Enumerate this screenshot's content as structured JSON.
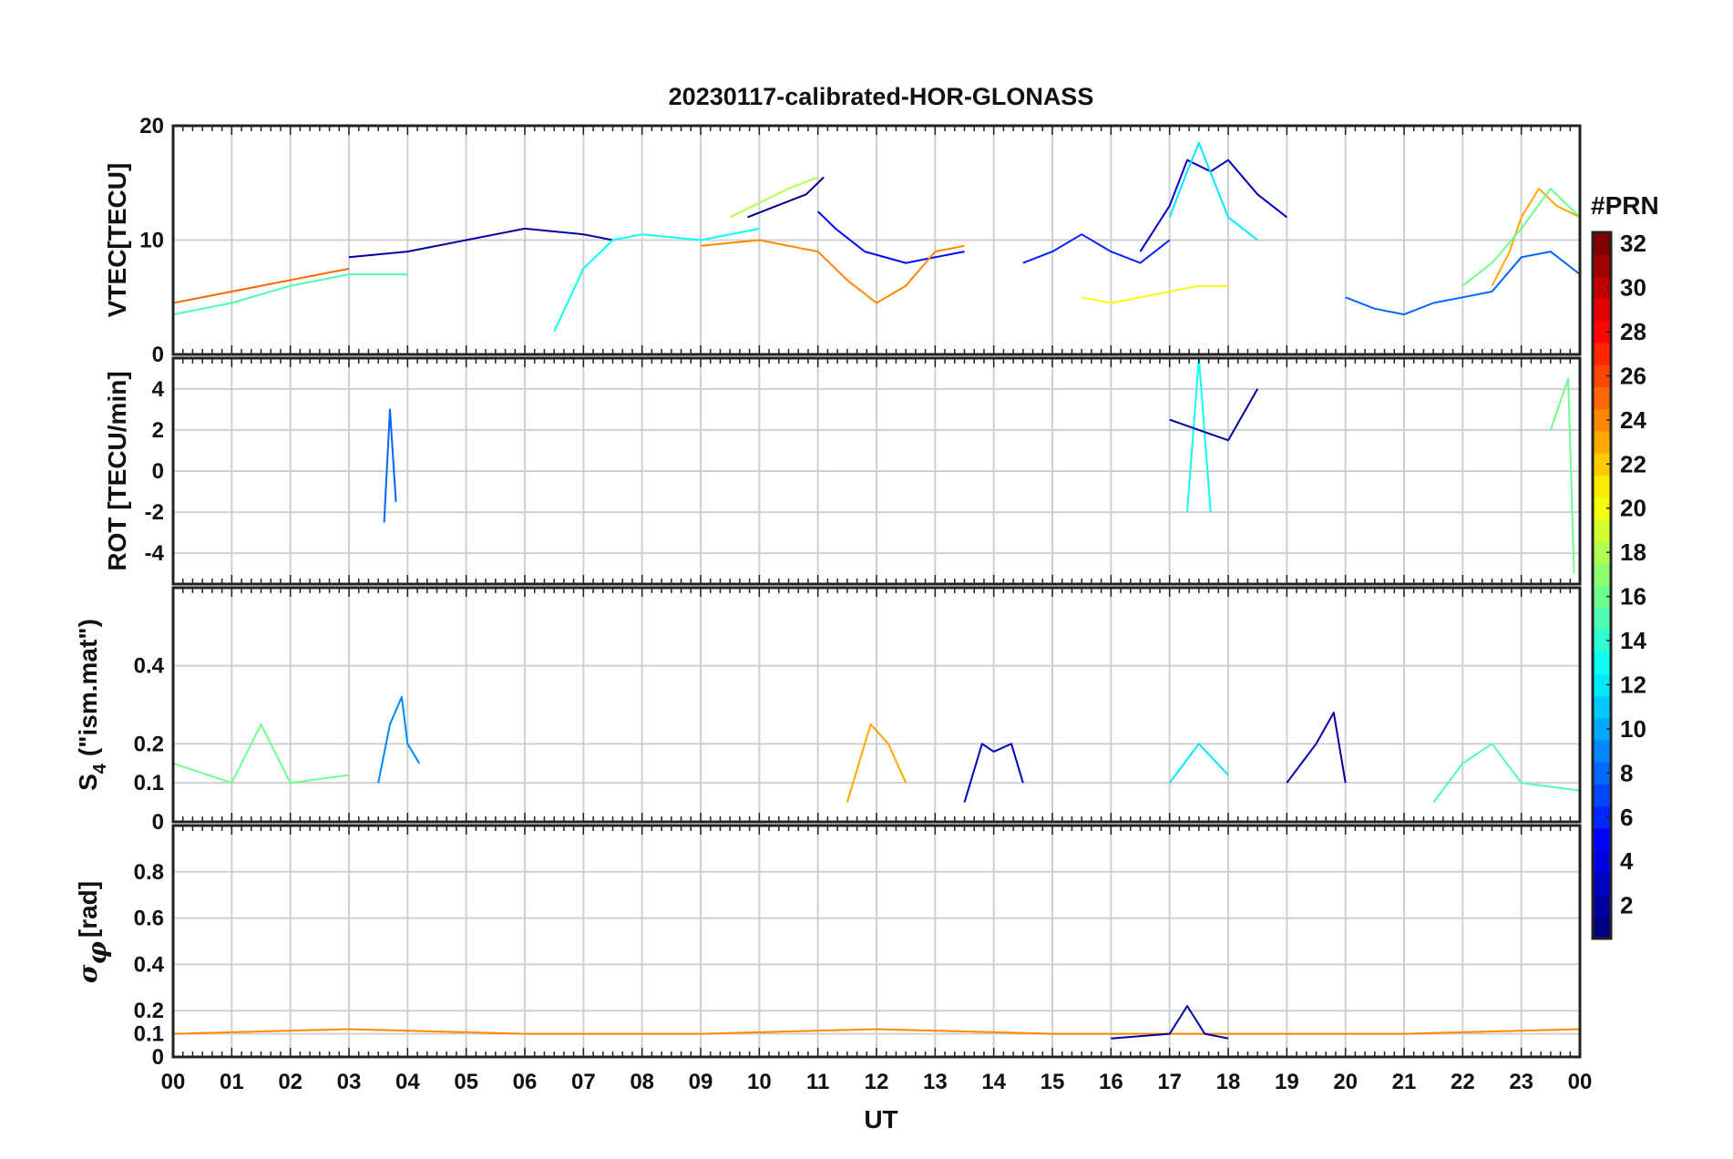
{
  "figure": {
    "title": "20230117-calibrated-HOR-GLONASS"
  },
  "chart_data": [
    {
      "panel": "vtec",
      "type": "line",
      "title": "20230117-calibrated-HOR-GLONASS",
      "ylabel": "VTEC[TECU]",
      "ylim": [
        0,
        20
      ],
      "yticks": [
        "0",
        "10",
        "20"
      ],
      "grid": true,
      "series": [
        {
          "prn": 2,
          "x": [
            3.0,
            4.0,
            5.0,
            5.5,
            6.0,
            7.0,
            7.5
          ],
          "y": [
            8.5,
            9.0,
            10.0,
            10.5,
            11.0,
            10.5,
            10.0
          ]
        },
        {
          "prn": 1,
          "x": [
            9.8,
            10.3,
            10.8,
            11.1
          ],
          "y": [
            12.0,
            13.0,
            14.0,
            15.5
          ]
        },
        {
          "prn": 5,
          "x": [
            11.0,
            11.3,
            11.8,
            12.5,
            13.0,
            13.5
          ],
          "y": [
            12.5,
            11.0,
            9.0,
            8.0,
            8.5,
            9.0
          ]
        },
        {
          "prn": 24,
          "x": [
            9.0,
            10.0,
            11.0,
            11.5,
            12.0,
            12.5,
            13.0,
            13.5
          ],
          "y": [
            9.5,
            10.0,
            9.0,
            6.5,
            4.5,
            6.0,
            9.0,
            9.5
          ]
        },
        {
          "prn": 13,
          "x": [
            6.5,
            7.0,
            7.5,
            8.0,
            9.0,
            10.0
          ],
          "y": [
            2.0,
            7.5,
            10.0,
            10.5,
            10.0,
            11.0
          ]
        },
        {
          "prn": 18,
          "x": [
            9.5,
            10.5,
            11.0
          ],
          "y": [
            12.0,
            14.5,
            15.5
          ]
        },
        {
          "prn": 3,
          "x": [
            16.5,
            17.0,
            17.3,
            17.7,
            18.0,
            18.5,
            19.0
          ],
          "y": [
            9.0,
            13.0,
            17.0,
            16.0,
            17.0,
            14.0,
            12.0
          ]
        },
        {
          "prn": 12,
          "x": [
            17.0,
            17.3,
            17.5,
            18.0,
            18.5
          ],
          "y": [
            12.0,
            16.0,
            18.5,
            12.0,
            10.0
          ]
        },
        {
          "prn": 6,
          "x": [
            14.5,
            15.0,
            15.5,
            16.0,
            16.5,
            17.0
          ],
          "y": [
            8.0,
            9.0,
            10.5,
            9.0,
            8.0,
            10.0
          ]
        },
        {
          "prn": 20,
          "x": [
            15.5,
            16.0,
            16.5,
            17.0,
            17.5,
            18.0
          ],
          "y": [
            5.0,
            4.5,
            5.0,
            5.5,
            6.0,
            6.0
          ]
        },
        {
          "prn": 23,
          "x": [
            22.5,
            22.8,
            23.0,
            23.3,
            23.6,
            24.0
          ],
          "y": [
            6.0,
            9.0,
            12.0,
            14.5,
            13.0,
            12.0
          ]
        },
        {
          "prn": 16,
          "x": [
            22.0,
            22.5,
            23.0,
            23.5,
            24.0
          ],
          "y": [
            6.0,
            8.0,
            11.0,
            14.5,
            12.0
          ]
        },
        {
          "prn": 8,
          "x": [
            20.0,
            20.5,
            21.0,
            21.5,
            22.0,
            22.5,
            23.0,
            23.5,
            24.0
          ],
          "y": [
            5.0,
            4.0,
            3.5,
            4.5,
            5.0,
            5.5,
            8.5,
            9.0,
            7.0
          ]
        },
        {
          "prn": 15,
          "x": [
            0.0,
            1.0,
            2.0,
            3.0,
            4.0
          ],
          "y": [
            3.5,
            4.5,
            6.0,
            7.0,
            7.0
          ]
        },
        {
          "prn": 25,
          "x": [
            0.0,
            1.0,
            2.0,
            3.0
          ],
          "y": [
            4.5,
            5.5,
            6.5,
            7.5
          ]
        }
      ]
    },
    {
      "panel": "rot",
      "type": "line",
      "ylabel": "ROT [TECU/min]",
      "ylim": [
        -5.5,
        5.5
      ],
      "yticks": [
        "-4",
        "-2",
        "0",
        "2",
        "4"
      ],
      "grid": true,
      "series": [
        {
          "prn": 8,
          "x": [
            3.6,
            3.7,
            3.8
          ],
          "y": [
            -2.5,
            3.0,
            -1.5
          ]
        },
        {
          "prn": 13,
          "x": [
            17.3,
            17.5,
            17.7
          ],
          "y": [
            -2.0,
            5.5,
            -2.0
          ]
        },
        {
          "prn": 2,
          "x": [
            17.0,
            17.5,
            18.0,
            18.5
          ],
          "y": [
            2.5,
            2.0,
            1.5,
            4.0
          ]
        },
        {
          "prn": 16,
          "x": [
            23.5,
            23.8,
            23.9
          ],
          "y": [
            2.0,
            4.5,
            -5.0
          ]
        }
      ]
    },
    {
      "panel": "s4",
      "type": "line",
      "ylabel": "S4 (\"ism.mat\")",
      "ylim": [
        0,
        0.6
      ],
      "yticks": [
        "0",
        "0.1",
        "0.2",
        "0.4"
      ],
      "grid": true,
      "series": [
        {
          "prn": 9,
          "x": [
            3.5,
            3.7,
            3.9,
            4.0,
            4.2
          ],
          "y": [
            0.1,
            0.25,
            0.32,
            0.2,
            0.15
          ]
        },
        {
          "prn": 23,
          "x": [
            11.5,
            11.9,
            12.2,
            12.5
          ],
          "y": [
            0.05,
            0.25,
            0.2,
            0.1
          ]
        },
        {
          "prn": 3,
          "x": [
            13.5,
            13.8,
            14.0,
            14.3,
            14.5
          ],
          "y": [
            0.05,
            0.2,
            0.18,
            0.2,
            0.1
          ]
        },
        {
          "prn": 2,
          "x": [
            19.0,
            19.5,
            19.8,
            20.0
          ],
          "y": [
            0.1,
            0.2,
            0.28,
            0.1
          ]
        },
        {
          "prn": 16,
          "x": [
            0.0,
            1.0,
            1.5,
            2.0,
            3.0
          ],
          "y": [
            0.15,
            0.1,
            0.25,
            0.1,
            0.12
          ]
        },
        {
          "prn": 12,
          "x": [
            17.0,
            17.5,
            18.0
          ],
          "y": [
            0.1,
            0.2,
            0.12
          ]
        },
        {
          "prn": 15,
          "x": [
            21.5,
            22.0,
            22.5,
            23.0,
            24.0
          ],
          "y": [
            0.05,
            0.15,
            0.2,
            0.1,
            0.08
          ]
        }
      ]
    },
    {
      "panel": "sigma_phi",
      "type": "line",
      "ylabel": "σφ[rad]",
      "ylim": [
        0,
        1.0
      ],
      "yticks": [
        "0",
        "0.1",
        "0.2",
        "0.4",
        "0.6",
        "0.8"
      ],
      "grid": true,
      "series": [
        {
          "prn": 24,
          "x": [
            0.0,
            3.0,
            6.0,
            9.0,
            12.0,
            15.0,
            18.0,
            21.0,
            24.0
          ],
          "y": [
            0.1,
            0.12,
            0.1,
            0.1,
            0.12,
            0.1,
            0.1,
            0.1,
            0.12
          ]
        },
        {
          "prn": 2,
          "x": [
            16.0,
            17.0,
            17.3,
            17.6,
            18.0
          ],
          "y": [
            0.08,
            0.1,
            0.22,
            0.1,
            0.08
          ]
        }
      ]
    }
  ],
  "x_axis": {
    "label": "UT",
    "range": [
      0,
      24
    ],
    "ticks": [
      "00",
      "01",
      "02",
      "03",
      "04",
      "05",
      "06",
      "07",
      "08",
      "09",
      "10",
      "11",
      "12",
      "13",
      "14",
      "15",
      "16",
      "17",
      "18",
      "19",
      "20",
      "21",
      "22",
      "23",
      "00"
    ]
  },
  "colorbar": {
    "title": "#PRN",
    "range": [
      1,
      32
    ],
    "ticks": [
      "2",
      "4",
      "6",
      "8",
      "10",
      "12",
      "14",
      "16",
      "18",
      "20",
      "22",
      "24",
      "26",
      "28",
      "30",
      "32"
    ],
    "colormap": "jet"
  }
}
